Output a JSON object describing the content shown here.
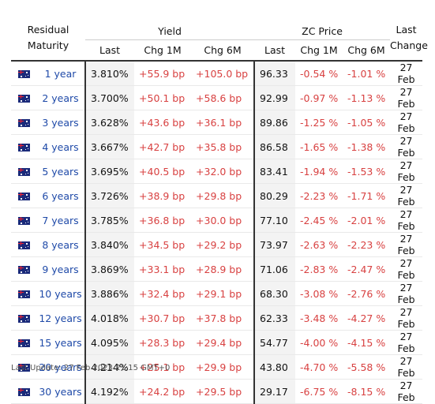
{
  "header": {
    "residual": "Residual",
    "maturity": "Maturity",
    "yield_group": "Yield",
    "zc_group": "ZC Price",
    "last_change_line1": "Last",
    "last_change_line2": "Change",
    "yield_cols": [
      "Last",
      "Chg 1M",
      "Chg 6M"
    ],
    "zc_cols": [
      "Last",
      "Chg 1M",
      "Chg 6M"
    ]
  },
  "flag_icon": "australia-flag-icon",
  "rows": [
    {
      "maturity": "1 year",
      "yield_last": "3.810%",
      "yield_chg1m": "+55.9 bp",
      "yield_chg6m": "+105.0 bp",
      "zc_last": "96.33",
      "zc_chg1m": "-0.54 %",
      "zc_chg6m": "-1.01 %",
      "last_change": "27 Feb"
    },
    {
      "maturity": "2 years",
      "yield_last": "3.700%",
      "yield_chg1m": "+50.1 bp",
      "yield_chg6m": "+58.6 bp",
      "zc_last": "92.99",
      "zc_chg1m": "-0.97 %",
      "zc_chg6m": "-1.13 %",
      "last_change": "27 Feb"
    },
    {
      "maturity": "3 years",
      "yield_last": "3.628%",
      "yield_chg1m": "+43.6 bp",
      "yield_chg6m": "+36.1 bp",
      "zc_last": "89.86",
      "zc_chg1m": "-1.25 %",
      "zc_chg6m": "-1.05 %",
      "last_change": "27 Feb"
    },
    {
      "maturity": "4 years",
      "yield_last": "3.667%",
      "yield_chg1m": "+42.7 bp",
      "yield_chg6m": "+35.8 bp",
      "zc_last": "86.58",
      "zc_chg1m": "-1.65 %",
      "zc_chg6m": "-1.38 %",
      "last_change": "27 Feb"
    },
    {
      "maturity": "5 years",
      "yield_last": "3.695%",
      "yield_chg1m": "+40.5 bp",
      "yield_chg6m": "+32.0 bp",
      "zc_last": "83.41",
      "zc_chg1m": "-1.94 %",
      "zc_chg6m": "-1.53 %",
      "last_change": "27 Feb"
    },
    {
      "maturity": "6 years",
      "yield_last": "3.726%",
      "yield_chg1m": "+38.9 bp",
      "yield_chg6m": "+29.8 bp",
      "zc_last": "80.29",
      "zc_chg1m": "-2.23 %",
      "zc_chg6m": "-1.71 %",
      "last_change": "27 Feb"
    },
    {
      "maturity": "7 years",
      "yield_last": "3.785%",
      "yield_chg1m": "+36.8 bp",
      "yield_chg6m": "+30.0 bp",
      "zc_last": "77.10",
      "zc_chg1m": "-2.45 %",
      "zc_chg6m": "-2.01 %",
      "last_change": "27 Feb"
    },
    {
      "maturity": "8 years",
      "yield_last": "3.840%",
      "yield_chg1m": "+34.5 bp",
      "yield_chg6m": "+29.2 bp",
      "zc_last": "73.97",
      "zc_chg1m": "-2.63 %",
      "zc_chg6m": "-2.23 %",
      "last_change": "27 Feb"
    },
    {
      "maturity": "9 years",
      "yield_last": "3.869%",
      "yield_chg1m": "+33.1 bp",
      "yield_chg6m": "+28.9 bp",
      "zc_last": "71.06",
      "zc_chg1m": "-2.83 %",
      "zc_chg6m": "-2.47 %",
      "last_change": "27 Feb"
    },
    {
      "maturity": "10 years",
      "yield_last": "3.886%",
      "yield_chg1m": "+32.4 bp",
      "yield_chg6m": "+29.1 bp",
      "zc_last": "68.30",
      "zc_chg1m": "-3.08 %",
      "zc_chg6m": "-2.76 %",
      "last_change": "27 Feb"
    },
    {
      "maturity": "12 years",
      "yield_last": "4.018%",
      "yield_chg1m": "+30.7 bp",
      "yield_chg6m": "+37.8 bp",
      "zc_last": "62.33",
      "zc_chg1m": "-3.48 %",
      "zc_chg6m": "-4.27 %",
      "last_change": "27 Feb"
    },
    {
      "maturity": "15 years",
      "yield_last": "4.095%",
      "yield_chg1m": "+28.3 bp",
      "yield_chg6m": "+29.4 bp",
      "zc_last": "54.77",
      "zc_chg1m": "-4.00 %",
      "zc_chg6m": "-4.15 %",
      "last_change": "27 Feb"
    },
    {
      "maturity": "20 years",
      "yield_last": "4.214%",
      "yield_chg1m": "+25.1 bp",
      "yield_chg6m": "+29.9 bp",
      "zc_last": "43.80",
      "zc_chg1m": "-4.70 %",
      "zc_chg6m": "-5.58 %",
      "last_change": "27 Feb"
    },
    {
      "maturity": "30 years",
      "yield_last": "4.192%",
      "yield_chg1m": "+24.2 bp",
      "yield_chg6m": "+29.5 bp",
      "zc_last": "29.17",
      "zc_chg1m": "-6.75 %",
      "zc_chg6m": "-8.15 %",
      "last_change": "27 Feb"
    }
  ],
  "footer": {
    "last_update": "Last Update: 27 Feb 2023 21:15 GMT+0"
  },
  "colors": {
    "link": "#1f4aa8",
    "change": "#d84141",
    "rule": "#333333"
  }
}
